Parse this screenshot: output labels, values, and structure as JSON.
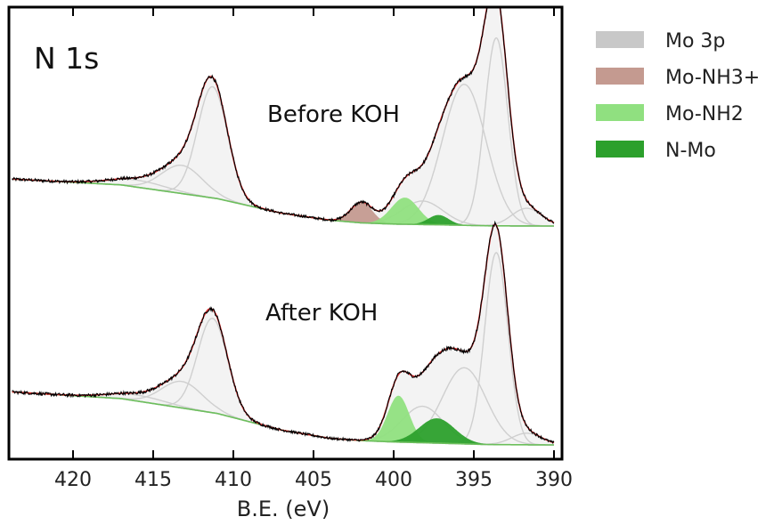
{
  "chart_data": {
    "type": "area",
    "title": "",
    "panel_label": "N 1s",
    "xlabel": "B.E. (eV)",
    "ylabel": "",
    "xlim": [
      424,
      389.5
    ],
    "x_reversed": true,
    "xticks": [
      420,
      415,
      410,
      405,
      400,
      395,
      390
    ],
    "legend": {
      "placement": "outside-right",
      "entries": [
        {
          "name": "Mo 3p",
          "color": "#c8c8c8"
        },
        {
          "name": "Mo-NH3+",
          "color": "#c49a90"
        },
        {
          "name": "Mo-NH2",
          "color": "#90e080"
        },
        {
          "name": "N-Mo",
          "color": "#2ca02c"
        }
      ]
    },
    "spectra": [
      {
        "annotation": "Before KOH",
        "baseline": [
          [
            423.8,
            12.0
          ],
          [
            417,
            10.5
          ],
          [
            411,
            7
          ],
          [
            407,
            3.3
          ],
          [
            404,
            1.5
          ],
          [
            402,
            0.8
          ],
          [
            400,
            0.5
          ],
          [
            397,
            0.3
          ],
          [
            394,
            0.05
          ],
          [
            390,
            0
          ]
        ],
        "components": [
          {
            "series": "Mo 3p",
            "center": 416.0,
            "height": 1.8,
            "fwhm": 4.2
          },
          {
            "series": "Mo 3p",
            "center": 413.2,
            "height": 7.2,
            "fwhm": 3.0
          },
          {
            "series": "Mo 3p",
            "center": 411.3,
            "height": 28.4,
            "fwhm": 2.2
          },
          {
            "series": "Mo 3p",
            "center": 398.2,
            "height": 6.0,
            "fwhm": 3.0
          },
          {
            "series": "Mo 3p",
            "center": 395.6,
            "height": 36.0,
            "fwhm": 3.2
          },
          {
            "series": "Mo 3p",
            "center": 393.6,
            "height": 48.0,
            "fwhm": 1.7
          },
          {
            "series": "Mo 3p",
            "center": 391.7,
            "height": 4.5,
            "fwhm": 2.2
          },
          {
            "series": "Mo-NH3+",
            "center": 402.0,
            "height": 5.2,
            "fwhm": 1.6
          },
          {
            "series": "Mo-NH2",
            "center": 399.3,
            "height": 6.8,
            "fwhm": 2.0
          },
          {
            "series": "N-Mo",
            "center": 397.2,
            "height": 2.5,
            "fwhm": 1.5
          }
        ]
      },
      {
        "annotation": "After KOH",
        "baseline": [
          [
            423.8,
            16.0
          ],
          [
            417,
            14
          ],
          [
            411,
            9.5
          ],
          [
            407,
            4.5
          ],
          [
            404,
            2.0
          ],
          [
            402,
            1.3
          ],
          [
            400,
            0.9
          ],
          [
            397,
            0.5
          ],
          [
            394,
            0.1
          ],
          [
            390,
            0
          ]
        ],
        "components": [
          {
            "series": "Mo 3p",
            "center": 416.0,
            "height": 1.8,
            "fwhm": 4.2
          },
          {
            "series": "Mo 3p",
            "center": 413.2,
            "height": 8.0,
            "fwhm": 3.0
          },
          {
            "series": "Mo 3p",
            "center": 411.3,
            "height": 28.5,
            "fwhm": 2.2
          },
          {
            "series": "Mo 3p",
            "center": 398.2,
            "height": 11.0,
            "fwhm": 3.0
          },
          {
            "series": "Mo 3p",
            "center": 395.6,
            "height": 23.0,
            "fwhm": 3.2
          },
          {
            "series": "Mo 3p",
            "center": 393.6,
            "height": 58.0,
            "fwhm": 1.7
          },
          {
            "series": "Mo 3p",
            "center": 391.7,
            "height": 3.5,
            "fwhm": 2.2
          },
          {
            "series": "Mo-NH2",
            "center": 399.7,
            "height": 14.0,
            "fwhm": 1.6
          },
          {
            "series": "N-Mo",
            "center": 397.3,
            "height": 7.5,
            "fwhm": 2.6
          }
        ]
      }
    ]
  }
}
